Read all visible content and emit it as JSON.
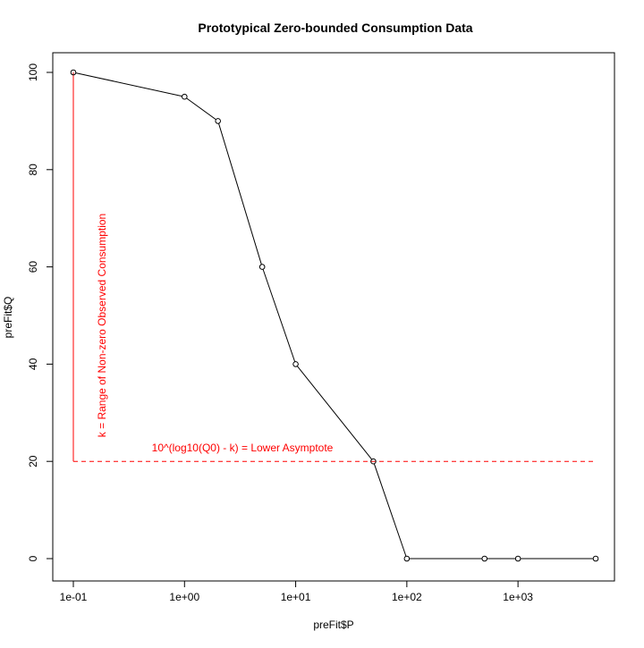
{
  "chart_data": {
    "type": "line",
    "title": "Prototypical Zero-bounded Consumption Data",
    "xlabel": "preFit$P",
    "ylabel": "preFit$Q",
    "x_scale": "log10",
    "xlim": [
      0.1,
      5000
    ],
    "ylim": [
      0,
      100
    ],
    "x_ticks": [
      0.1,
      1,
      10,
      100,
      1000
    ],
    "x_tick_labels": [
      "1e-01",
      "1e+00",
      "1e+01",
      "1e+02",
      "1e+03"
    ],
    "y_ticks": [
      0,
      20,
      40,
      60,
      80,
      100
    ],
    "y_tick_labels": [
      "0",
      "20",
      "40",
      "60",
      "80",
      "100"
    ],
    "series": [
      {
        "x": [
          0.1,
          1,
          2,
          5,
          10,
          50,
          100,
          500,
          1000,
          5000
        ],
        "y": [
          100,
          95,
          90,
          60,
          40,
          20,
          0,
          0,
          0,
          0
        ],
        "line_color": "#000000",
        "markers": "open-circle"
      }
    ],
    "annotations": [
      {
        "kind": "vertical-segment",
        "x": 0.1,
        "y_from": 20,
        "y_to": 100,
        "color": "#ff0000",
        "text": "k = Range of Non-zero Observed Consumption"
      },
      {
        "kind": "horizontal-dashed",
        "y": 20,
        "x_from": 0.1,
        "x_to": 5000,
        "color": "#ff0000",
        "text": "10^(log10(Q0) - k) = Lower Asymptote"
      }
    ],
    "grid": false
  }
}
